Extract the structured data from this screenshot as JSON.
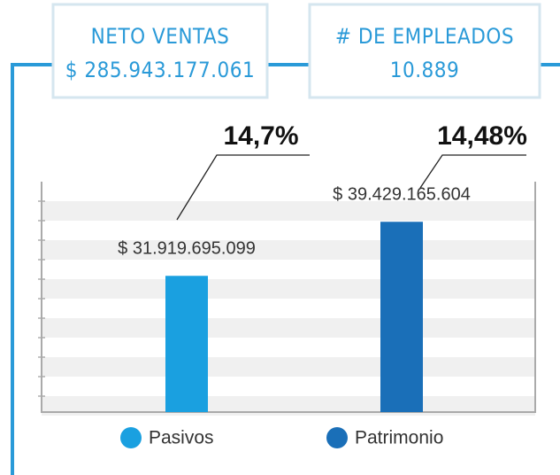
{
  "header": {
    "boxes": [
      {
        "title": "NETO VENTAS",
        "value": "$ 285.943.177.061"
      },
      {
        "title": "# DE EMPLEADOS",
        "value": "10.889"
      }
    ]
  },
  "chart_data": {
    "type": "bar",
    "categories": [
      "Pasivos",
      "Patrimonio"
    ],
    "values": [
      31919695099,
      39429165604
    ],
    "value_labels": [
      "$ 31.919.695.099",
      "$ 39.429.165.604"
    ],
    "colors": [
      "#1aa0e0",
      "#1a6fb8"
    ],
    "annotations": [
      "14,7%",
      "14,48%"
    ],
    "ylim": [
      13000000000,
      45000000000
    ]
  }
}
